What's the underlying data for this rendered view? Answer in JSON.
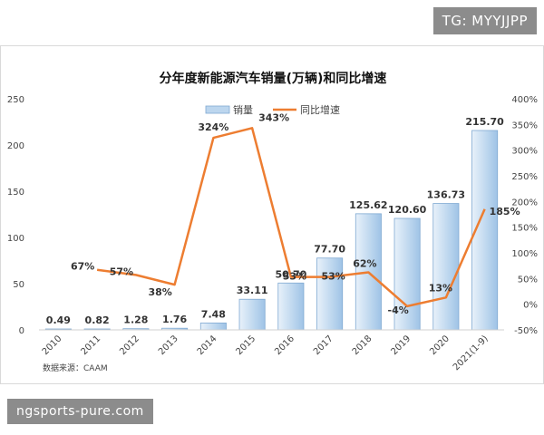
{
  "watermark_top": "TG: MYYJJPP",
  "watermark_bottom": "ngsports-pure.com",
  "source_note": "数据来源：CAAM",
  "chart_data": {
    "type": "bar",
    "title": "分年度新能源汽车销量(万辆)和同比增速",
    "categories": [
      "2010",
      "2011",
      "2012",
      "2013",
      "2014",
      "2015",
      "2016",
      "2017",
      "2018",
      "2019",
      "2020",
      "2021(1-9)"
    ],
    "series": [
      {
        "name": "销量",
        "type": "bar",
        "axis": "left",
        "values": [
          0.49,
          0.82,
          1.28,
          1.76,
          7.48,
          33.11,
          50.7,
          77.7,
          125.62,
          120.6,
          136.73,
          215.7
        ],
        "labels": [
          "0.49",
          "0.82",
          "1.28",
          "1.76",
          "7.48",
          "33.11",
          "50.70",
          "77.70",
          "125.62",
          "120.60",
          "136.73",
          "215.70"
        ],
        "color": "#bcd6ee"
      },
      {
        "name": "同比增速",
        "type": "line",
        "axis": "right",
        "values": [
          null,
          67,
          57,
          38,
          324,
          343,
          53,
          53,
          62,
          -4,
          13,
          185
        ],
        "labels": [
          "",
          "67%",
          "57%",
          "38%",
          "324%",
          "343%",
          "53%",
          "53%",
          "62%",
          "-4%",
          "13%",
          "185%"
        ],
        "color": "#ed7d31"
      }
    ],
    "y_left": {
      "min": 0,
      "max": 250,
      "ticks": [
        "0",
        "50",
        "100",
        "150",
        "200",
        "250"
      ]
    },
    "y_right": {
      "min": -50,
      "max": 400,
      "ticks": [
        "-50%",
        "0%",
        "50%",
        "100%",
        "150%",
        "200%",
        "250%",
        "300%",
        "350%",
        "400%"
      ]
    },
    "legend_position": "top-center",
    "grid": false
  }
}
